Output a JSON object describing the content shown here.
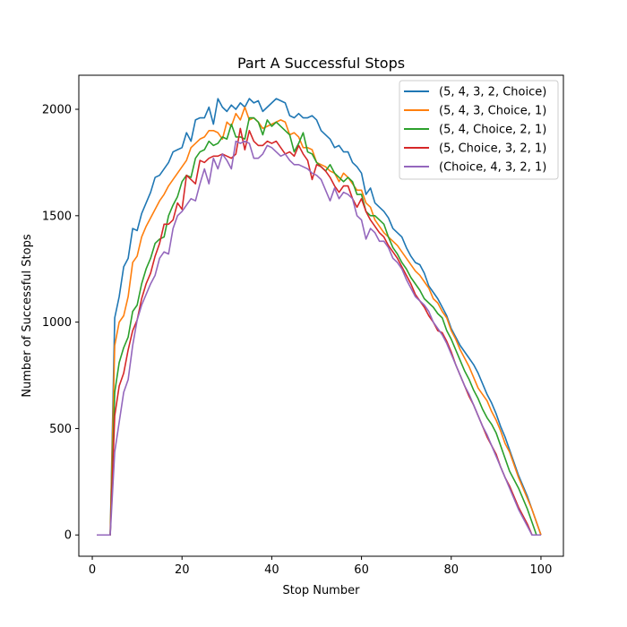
{
  "chart_data": {
    "type": "line",
    "title": "Part A Successful Stops",
    "xlabel": "Stop Number",
    "ylabel": "Number of Successful Stops",
    "xlim": [
      -3,
      105
    ],
    "ylim": [
      -100,
      2160
    ],
    "xticks": [
      0,
      20,
      40,
      60,
      80,
      100
    ],
    "yticks": [
      0,
      500,
      1000,
      1500,
      2000
    ],
    "grid": false,
    "legend_position": "top-right",
    "x": [
      1,
      2,
      3,
      4,
      5,
      6,
      7,
      8,
      9,
      10,
      11,
      12,
      13,
      14,
      15,
      16,
      17,
      18,
      19,
      20,
      21,
      22,
      23,
      24,
      25,
      26,
      27,
      28,
      29,
      30,
      31,
      32,
      33,
      34,
      35,
      36,
      37,
      38,
      39,
      40,
      41,
      42,
      43,
      44,
      45,
      46,
      47,
      48,
      49,
      50,
      51,
      52,
      53,
      54,
      55,
      56,
      57,
      58,
      59,
      60,
      61,
      62,
      63,
      64,
      65,
      66,
      67,
      68,
      69,
      70,
      71,
      72,
      73,
      74,
      75,
      76,
      77,
      78,
      79,
      80,
      81,
      82,
      83,
      84,
      85,
      86,
      87,
      88,
      89,
      90,
      91,
      92,
      93,
      94,
      95,
      96,
      97,
      98,
      99,
      100
    ],
    "series": [
      {
        "name": "(5, 4, 3, 2, Choice)",
        "color": "#1f77b4",
        "values": [
          0,
          0,
          0,
          0,
          1020,
          1120,
          1260,
          1300,
          1440,
          1430,
          1510,
          1560,
          1610,
          1680,
          1690,
          1720,
          1750,
          1800,
          1810,
          1820,
          1890,
          1850,
          1950,
          1960,
          1960,
          2010,
          1930,
          2050,
          2010,
          1990,
          2020,
          2000,
          2030,
          2010,
          2050,
          2030,
          2040,
          1990,
          2010,
          2030,
          2050,
          2040,
          2030,
          1970,
          1960,
          1980,
          1960,
          1960,
          1970,
          1950,
          1900,
          1880,
          1860,
          1820,
          1830,
          1800,
          1800,
          1750,
          1730,
          1700,
          1600,
          1630,
          1560,
          1540,
          1520,
          1490,
          1440,
          1420,
          1400,
          1350,
          1310,
          1280,
          1270,
          1230,
          1170,
          1140,
          1110,
          1070,
          1030,
          970,
          930,
          890,
          860,
          830,
          800,
          760,
          710,
          660,
          620,
          570,
          510,
          460,
          400,
          340,
          280,
          230,
          180,
          120,
          60,
          0
        ]
      },
      {
        "name": "(5, 4, 3, Choice, 1)",
        "color": "#ff7f0e",
        "values": [
          0,
          0,
          0,
          0,
          890,
          1000,
          1030,
          1120,
          1280,
          1310,
          1400,
          1450,
          1490,
          1530,
          1570,
          1600,
          1640,
          1670,
          1700,
          1730,
          1760,
          1820,
          1840,
          1860,
          1870,
          1900,
          1900,
          1890,
          1860,
          1940,
          1920,
          1980,
          1950,
          2010,
          1950,
          1960,
          1940,
          1910,
          1920,
          1930,
          1940,
          1950,
          1940,
          1880,
          1890,
          1870,
          1820,
          1820,
          1810,
          1750,
          1740,
          1730,
          1710,
          1700,
          1660,
          1700,
          1680,
          1650,
          1620,
          1620,
          1560,
          1540,
          1480,
          1450,
          1420,
          1400,
          1380,
          1360,
          1330,
          1300,
          1270,
          1240,
          1220,
          1190,
          1160,
          1110,
          1090,
          1050,
          1020,
          960,
          920,
          870,
          830,
          790,
          740,
          690,
          660,
          630,
          580,
          540,
          490,
          430,
          390,
          330,
          270,
          220,
          170,
          120,
          60,
          0
        ]
      },
      {
        "name": "(5, 4, Choice, 2, 1)",
        "color": "#2ca02c",
        "values": [
          0,
          0,
          0,
          0,
          670,
          810,
          880,
          930,
          1050,
          1080,
          1180,
          1250,
          1300,
          1370,
          1390,
          1400,
          1500,
          1550,
          1590,
          1660,
          1690,
          1680,
          1770,
          1800,
          1810,
          1850,
          1830,
          1840,
          1870,
          1860,
          1930,
          1870,
          1870,
          1860,
          1960,
          1960,
          1940,
          1880,
          1950,
          1920,
          1940,
          1920,
          1900,
          1880,
          1800,
          1840,
          1890,
          1800,
          1790,
          1750,
          1730,
          1710,
          1740,
          1700,
          1680,
          1660,
          1680,
          1660,
          1600,
          1600,
          1520,
          1500,
          1500,
          1480,
          1460,
          1400,
          1350,
          1320,
          1280,
          1250,
          1210,
          1180,
          1150,
          1110,
          1090,
          1070,
          1040,
          1020,
          960,
          920,
          870,
          820,
          770,
          730,
          680,
          640,
          590,
          550,
          520,
          480,
          420,
          360,
          300,
          260,
          220,
          170,
          120,
          60,
          0,
          0
        ]
      },
      {
        "name": "(5, Choice, 3, 2, 1)",
        "color": "#d62728",
        "values": [
          0,
          0,
          0,
          0,
          560,
          700,
          760,
          870,
          960,
          1010,
          1110,
          1180,
          1230,
          1310,
          1370,
          1460,
          1460,
          1480,
          1560,
          1530,
          1690,
          1670,
          1650,
          1760,
          1750,
          1770,
          1780,
          1780,
          1790,
          1780,
          1770,
          1790,
          1910,
          1810,
          1900,
          1850,
          1830,
          1830,
          1850,
          1840,
          1850,
          1820,
          1790,
          1800,
          1780,
          1830,
          1790,
          1760,
          1670,
          1740,
          1730,
          1710,
          1680,
          1640,
          1610,
          1640,
          1640,
          1580,
          1540,
          1580,
          1520,
          1480,
          1450,
          1420,
          1400,
          1360,
          1330,
          1300,
          1260,
          1220,
          1180,
          1130,
          1100,
          1070,
          1030,
          1000,
          960,
          950,
          910,
          860,
          800,
          750,
          700,
          650,
          610,
          560,
          510,
          460,
          420,
          380,
          320,
          270,
          230,
          180,
          130,
          90,
          50,
          0,
          0,
          0
        ]
      },
      {
        "name": "(Choice, 4, 3, 2, 1)",
        "color": "#9467bd",
        "values": [
          0,
          0,
          0,
          0,
          390,
          530,
          670,
          730,
          890,
          1010,
          1080,
          1130,
          1180,
          1220,
          1300,
          1330,
          1320,
          1440,
          1500,
          1520,
          1550,
          1580,
          1570,
          1650,
          1720,
          1650,
          1770,
          1720,
          1790,
          1760,
          1720,
          1850,
          1840,
          1850,
          1840,
          1770,
          1770,
          1790,
          1830,
          1820,
          1800,
          1780,
          1790,
          1760,
          1740,
          1740,
          1730,
          1720,
          1700,
          1690,
          1670,
          1620,
          1570,
          1630,
          1580,
          1610,
          1600,
          1580,
          1500,
          1480,
          1390,
          1440,
          1420,
          1380,
          1380,
          1350,
          1300,
          1280,
          1250,
          1200,
          1160,
          1120,
          1100,
          1080,
          1050,
          1000,
          970,
          940,
          900,
          850,
          800,
          750,
          700,
          660,
          610,
          560,
          510,
          470,
          420,
          370,
          320,
          270,
          220,
          170,
          120,
          80,
          40,
          0,
          0,
          0
        ]
      }
    ]
  }
}
